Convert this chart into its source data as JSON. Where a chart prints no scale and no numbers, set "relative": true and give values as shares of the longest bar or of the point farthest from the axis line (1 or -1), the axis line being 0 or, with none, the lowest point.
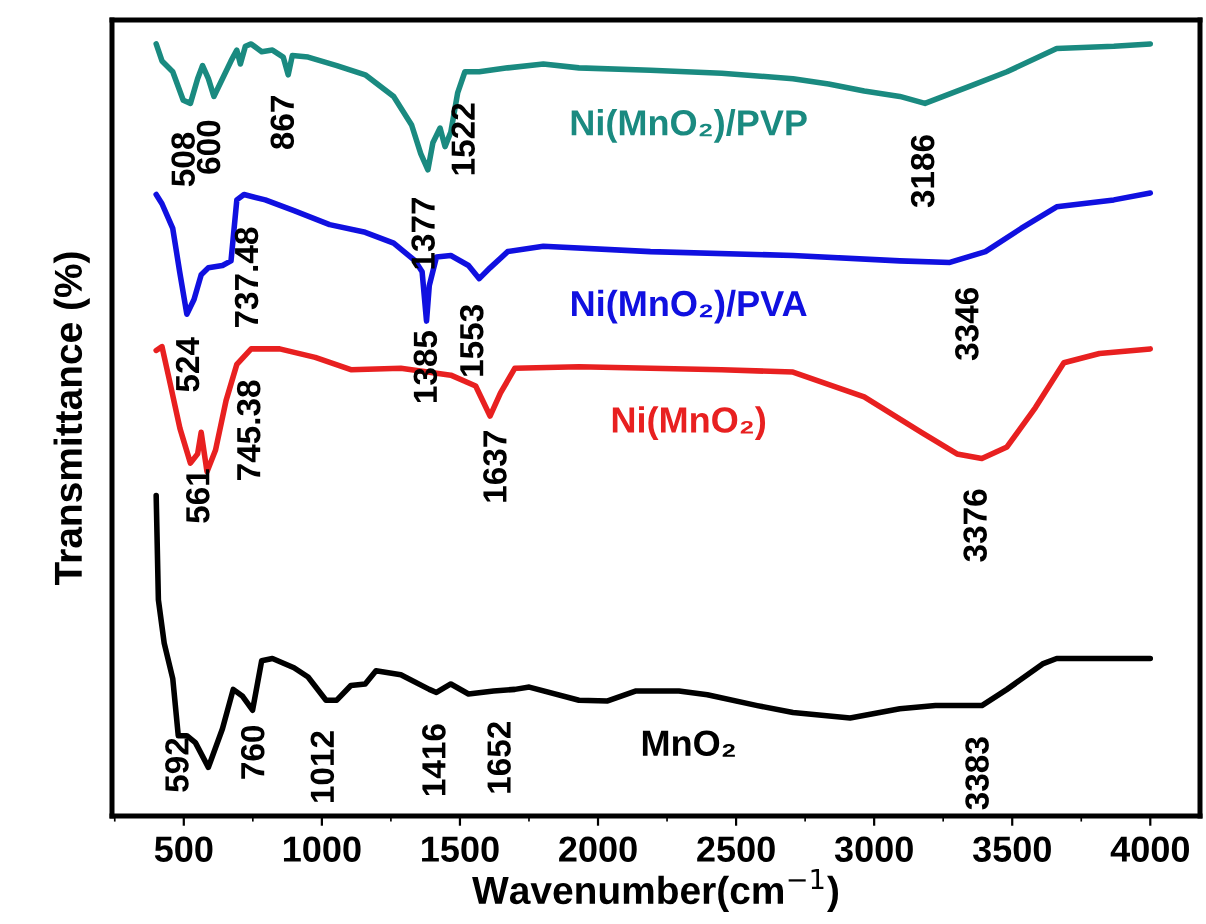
{
  "chart_data": {
    "type": "line",
    "relative": true,
    "xlabel": "Wavenumber(cm$^{−1}$)",
    "ylabel": "Transmittance (%)",
    "xlim": [
      240,
      4180
    ],
    "xticks": [
      500,
      1000,
      1500,
      2000,
      2500,
      3000,
      3500,
      4000
    ],
    "grid": false,
    "legend": false,
    "line_style": "solid",
    "marker": "none",
    "series": [
      {
        "name": "Ni(MnO₂)/PVP",
        "color": "#1a8a80",
        "x": [
          400,
          421,
          460,
          498,
          524,
          550,
          568,
          589,
          609,
          640,
          671,
          692,
          705,
          723,
          744,
          782,
          821,
          860,
          878,
          893,
          950,
          1054,
          1157,
          1260,
          1325,
          1358,
          1384,
          1402,
          1428,
          1446,
          1467,
          1492,
          1518,
          1570,
          1673,
          1802,
          1931,
          2190,
          2448,
          2706,
          2835,
          2964,
          3093,
          3184,
          3352,
          3481,
          3661,
          3868,
          4000
        ],
        "values": [
          1.0,
          0.978,
          0.964,
          0.927,
          0.923,
          0.955,
          0.972,
          0.955,
          0.932,
          0.955,
          0.978,
          0.992,
          0.974,
          0.997,
          1.0,
          0.99,
          0.992,
          0.983,
          0.96,
          0.985,
          0.983,
          0.972,
          0.96,
          0.932,
          0.895,
          0.858,
          0.837,
          0.872,
          0.891,
          0.867,
          0.886,
          0.937,
          0.964,
          0.964,
          0.969,
          0.974,
          0.969,
          0.966,
          0.962,
          0.955,
          0.948,
          0.939,
          0.932,
          0.923,
          0.946,
          0.964,
          0.994,
          0.997,
          1.0
        ]
      },
      {
        "name": "Ni(MnO₂)/PVA",
        "color": "#1010e0",
        "x": [
          400,
          421,
          460,
          485,
          511,
          537,
          563,
          589,
          640,
          671,
          692,
          718,
          795,
          899,
          1028,
          1157,
          1260,
          1338,
          1363,
          1379,
          1389,
          1415,
          1467,
          1531,
          1570,
          1609,
          1673,
          1802,
          2190,
          2706,
          3093,
          3274,
          3403,
          3532,
          3661,
          3868,
          4000
        ],
        "values": [
          0.805,
          0.793,
          0.761,
          0.705,
          0.65,
          0.669,
          0.701,
          0.71,
          0.713,
          0.719,
          0.798,
          0.805,
          0.798,
          0.784,
          0.766,
          0.756,
          0.742,
          0.719,
          0.705,
          0.641,
          0.687,
          0.724,
          0.726,
          0.713,
          0.696,
          0.71,
          0.731,
          0.738,
          0.731,
          0.726,
          0.719,
          0.717,
          0.731,
          0.761,
          0.789,
          0.798,
          0.807
        ]
      },
      {
        "name": "Ni(MnO₂)",
        "color": "#e82020",
        "x": [
          400,
          421,
          447,
          486,
          524,
          550,
          563,
          584,
          615,
          653,
          692,
          744,
          847,
          976,
          1105,
          1286,
          1467,
          1557,
          1609,
          1647,
          1699,
          1931,
          2448,
          2706,
          2964,
          3171,
          3300,
          3390,
          3481,
          3584,
          3687,
          3816,
          4000
        ],
        "values": [
          0.603,
          0.608,
          0.566,
          0.502,
          0.457,
          0.469,
          0.497,
          0.446,
          0.474,
          0.538,
          0.585,
          0.605,
          0.605,
          0.594,
          0.578,
          0.58,
          0.571,
          0.557,
          0.518,
          0.548,
          0.58,
          0.582,
          0.578,
          0.575,
          0.543,
          0.497,
          0.469,
          0.463,
          0.478,
          0.529,
          0.587,
          0.599,
          0.605
        ]
      },
      {
        "name": "MnO₂",
        "color": "#000000",
        "x": [
          400,
          408,
          429,
          460,
          480,
          511,
          542,
          589,
          640,
          679,
          713,
          749,
          782,
          821,
          899,
          950,
          1015,
          1054,
          1105,
          1157,
          1196,
          1286,
          1389,
          1415,
          1467,
          1531,
          1622,
          1699,
          1751,
          1931,
          2035,
          2138,
          2293,
          2396,
          2577,
          2706,
          2913,
          3093,
          3222,
          3390,
          3481,
          3610,
          3661,
          4000
        ],
        "values": [
          0.415,
          0.28,
          0.224,
          0.178,
          0.104,
          0.104,
          0.095,
          0.063,
          0.113,
          0.164,
          0.155,
          0.137,
          0.201,
          0.204,
          0.192,
          0.18,
          0.15,
          0.15,
          0.169,
          0.171,
          0.188,
          0.183,
          0.164,
          0.16,
          0.171,
          0.158,
          0.162,
          0.164,
          0.167,
          0.15,
          0.149,
          0.162,
          0.162,
          0.157,
          0.143,
          0.134,
          0.127,
          0.139,
          0.143,
          0.143,
          0.164,
          0.197,
          0.204,
          0.204
        ]
      }
    ],
    "annotations": [
      {
        "text": "508",
        "x": 508,
        "y": 0.926
      },
      {
        "text": "600",
        "x": 600,
        "y": 0.942
      },
      {
        "text": "867",
        "x": 867,
        "y": 0.974
      },
      {
        "text": "1377",
        "x": 1377,
        "y": 0.842
      },
      {
        "text": "1522",
        "x": 1522,
        "y": 0.964
      },
      {
        "text": "3186",
        "x": 3186,
        "y": 0.923
      },
      {
        "text": "524",
        "x": 524,
        "y": 0.66
      },
      {
        "text": "737.48",
        "x": 737.48,
        "y": 0.803
      },
      {
        "text": "1385",
        "x": 1385,
        "y": 0.669
      },
      {
        "text": "1553",
        "x": 1553,
        "y": 0.703
      },
      {
        "text": "3346",
        "x": 3346,
        "y": 0.725
      },
      {
        "text": "561",
        "x": 561,
        "y": 0.49
      },
      {
        "text": "745.38",
        "x": 745.38,
        "y": 0.605
      },
      {
        "text": "1637",
        "x": 1637,
        "y": 0.54
      },
      {
        "text": "3376",
        "x": 3376,
        "y": 0.464
      },
      {
        "text": "592",
        "x": 592,
        "y": 0.066
      },
      {
        "text": "760",
        "x": 760,
        "y": 0.158
      },
      {
        "text": "1012",
        "x": 1012,
        "y": 0.151
      },
      {
        "text": "1416",
        "x": 1416,
        "y": 0.16
      },
      {
        "text": "1652",
        "x": 1652,
        "y": 0.163
      },
      {
        "text": "3383",
        "x": 3383,
        "y": 0.143
      }
    ]
  }
}
